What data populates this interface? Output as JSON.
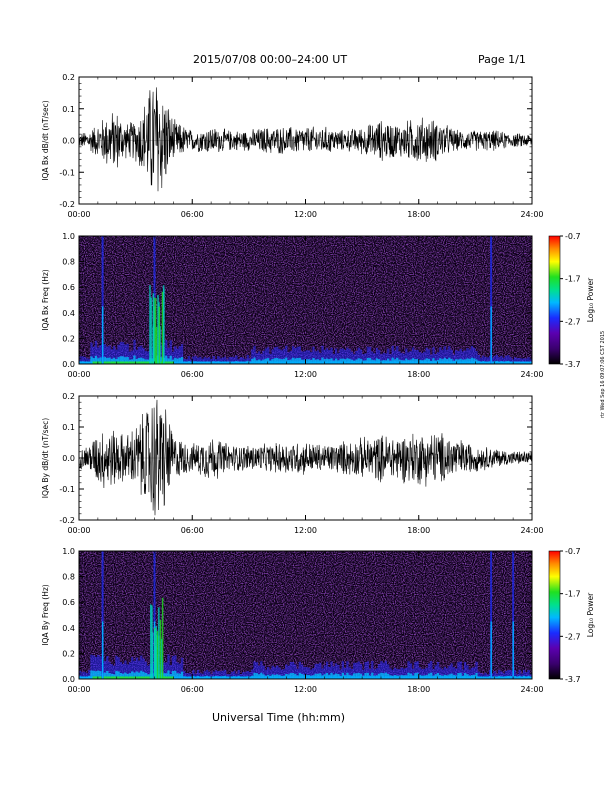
{
  "header": {
    "title": "2015/07/08  00:00–24:00 UT",
    "page": "Page 1/1"
  },
  "footer": {
    "xaxis_title": "Universal Time (hh:mm)",
    "stamp": "rtr Wed Sep 16 09:07:06 CST 2015"
  },
  "colorbar": {
    "label": "Log₁₀ Power",
    "ticks": [
      "-0.7",
      "-1.7",
      "-2.7",
      "-3.7"
    ],
    "tick_values": [
      -0.7,
      -1.7,
      -2.7,
      -3.7
    ],
    "range": [
      -3.7,
      -0.7
    ]
  },
  "colors": {
    "line": "#000000",
    "colormap": [
      "#000000",
      "#5b00a8",
      "#1a2cff",
      "#00b8ff",
      "#00e090",
      "#20e020",
      "#ffff00",
      "#ff8c00",
      "#ff0000"
    ]
  },
  "chart_data": [
    {
      "type": "line",
      "ylabel": "IQA Bx dB/dt (nT/sec)",
      "xlim": [
        "00:00",
        "24:00"
      ],
      "ylim": [
        -0.2,
        0.2
      ],
      "x_ticks": [
        "00:00",
        "06:00",
        "12:00",
        "18:00",
        "24:00"
      ],
      "y_ticks": [
        "0.2",
        "0.1",
        "0.0",
        "-0.1",
        "-0.2"
      ],
      "y_tick_values": [
        0.2,
        0.1,
        0.0,
        -0.1,
        -0.2
      ],
      "series": [
        {
          "values": [
            [
              "00:00",
              0.02
            ],
            [
              "00:30",
              0.03
            ],
            [
              "01:00",
              0.05
            ],
            [
              "01:30",
              0.08
            ],
            [
              "02:00",
              0.09
            ],
            [
              "02:30",
              0.05
            ],
            [
              "03:00",
              0.06
            ],
            [
              "03:30",
              0.12
            ],
            [
              "04:00",
              0.2
            ],
            [
              "04:30",
              0.15
            ],
            [
              "05:00",
              0.06
            ],
            [
              "06:00",
              0.03
            ],
            [
              "07:00",
              0.04
            ],
            [
              "08:00",
              0.03
            ],
            [
              "09:00",
              0.03
            ],
            [
              "10:00",
              0.04
            ],
            [
              "11:00",
              0.04
            ],
            [
              "12:00",
              0.04
            ],
            [
              "13:00",
              0.04
            ],
            [
              "14:00",
              0.03
            ],
            [
              "15:00",
              0.04
            ],
            [
              "16:00",
              0.06
            ],
            [
              "17:00",
              0.05
            ],
            [
              "18:00",
              0.07
            ],
            [
              "19:00",
              0.06
            ],
            [
              "20:00",
              0.03
            ],
            [
              "21:00",
              0.03
            ],
            [
              "22:00",
              0.03
            ],
            [
              "23:00",
              0.02
            ],
            [
              "24:00",
              0.02
            ]
          ]
        }
      ]
    },
    {
      "type": "heatmap",
      "ylabel": "IQA Bx Freq (Hz)",
      "xlim": [
        "00:00",
        "24:00"
      ],
      "ylim": [
        0.0,
        1.0
      ],
      "x_ticks": [
        "00:00",
        "06:00",
        "12:00",
        "18:00",
        "24:00"
      ],
      "y_ticks": [
        "1.0",
        "0.8",
        "0.6",
        "0.4",
        "0.2",
        "0.0"
      ],
      "y_tick_values": [
        1.0,
        0.8,
        0.6,
        0.4,
        0.2,
        0.0
      ],
      "bright_bands_utc": [
        "01:15",
        "04:00",
        "21:50"
      ]
    },
    {
      "type": "line",
      "ylabel": "IQA By dB/dt (nT/sec)",
      "xlim": [
        "00:00",
        "24:00"
      ],
      "ylim": [
        -0.2,
        0.2
      ],
      "x_ticks": [
        "00:00",
        "06:00",
        "12:00",
        "18:00",
        "24:00"
      ],
      "y_ticks": [
        "0.2",
        "0.1",
        "0.0",
        "-0.1",
        "-0.2"
      ],
      "y_tick_values": [
        0.2,
        0.1,
        0.0,
        -0.1,
        -0.2
      ],
      "series": [
        {
          "values": [
            [
              "00:00",
              0.03
            ],
            [
              "00:30",
              0.04
            ],
            [
              "01:00",
              0.08
            ],
            [
              "01:30",
              0.1
            ],
            [
              "02:00",
              0.08
            ],
            [
              "02:30",
              0.07
            ],
            [
              "03:00",
              0.1
            ],
            [
              "03:30",
              0.14
            ],
            [
              "04:00",
              0.2
            ],
            [
              "04:30",
              0.18
            ],
            [
              "05:00",
              0.07
            ],
            [
              "06:00",
              0.04
            ],
            [
              "07:00",
              0.07
            ],
            [
              "08:00",
              0.04
            ],
            [
              "09:00",
              0.04
            ],
            [
              "10:00",
              0.04
            ],
            [
              "11:00",
              0.05
            ],
            [
              "12:00",
              0.05
            ],
            [
              "13:00",
              0.04
            ],
            [
              "14:00",
              0.05
            ],
            [
              "15:00",
              0.06
            ],
            [
              "16:00",
              0.07
            ],
            [
              "17:00",
              0.07
            ],
            [
              "18:00",
              0.08
            ],
            [
              "19:00",
              0.08
            ],
            [
              "20:00",
              0.06
            ],
            [
              "21:00",
              0.04
            ],
            [
              "22:00",
              0.03
            ],
            [
              "23:00",
              0.02
            ],
            [
              "24:00",
              0.02
            ]
          ]
        }
      ]
    },
    {
      "type": "heatmap",
      "ylabel": "IQA By Freq (Hz)",
      "xlim": [
        "00:00",
        "24:00"
      ],
      "ylim": [
        0.0,
        1.0
      ],
      "x_ticks": [
        "00:00",
        "06:00",
        "12:00",
        "18:00",
        "24:00"
      ],
      "y_ticks": [
        "1.0",
        "0.8",
        "0.6",
        "0.4",
        "0.2",
        "0.0"
      ],
      "y_tick_values": [
        1.0,
        0.8,
        0.6,
        0.4,
        0.2,
        0.0
      ],
      "bright_bands_utc": [
        "01:15",
        "04:00",
        "21:50",
        "23:00"
      ]
    }
  ]
}
